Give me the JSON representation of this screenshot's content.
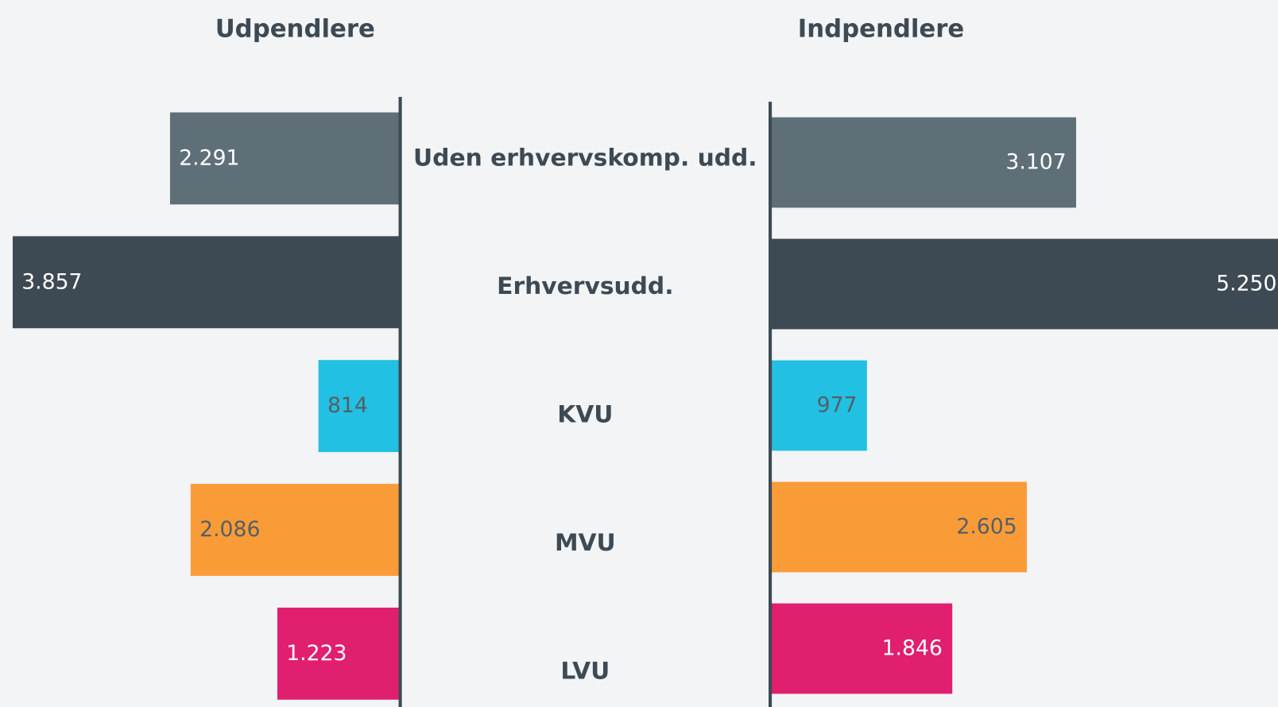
{
  "chart_data": {
    "type": "bar",
    "categories": [
      "Uden erhvervskomp. udd.",
      "Erhvervsudd.",
      "KVU",
      "MVU",
      "LVU"
    ],
    "colors": [
      "#5f6f78",
      "#3d4a53",
      "#22c0e2",
      "#f99c38",
      "#e01f6f"
    ],
    "series": [
      {
        "name": "Udpendlere",
        "values": [
          2291,
          3857,
          814,
          2086,
          1223
        ],
        "value_labels": [
          "2.291",
          "3.857",
          "814",
          "2.086",
          "1.223"
        ]
      },
      {
        "name": "Indpendlere",
        "values": [
          3107,
          5250,
          977,
          2605,
          1846
        ],
        "value_labels": [
          "3.107",
          "5.250",
          "977",
          "2.605",
          "1.846"
        ]
      }
    ]
  }
}
